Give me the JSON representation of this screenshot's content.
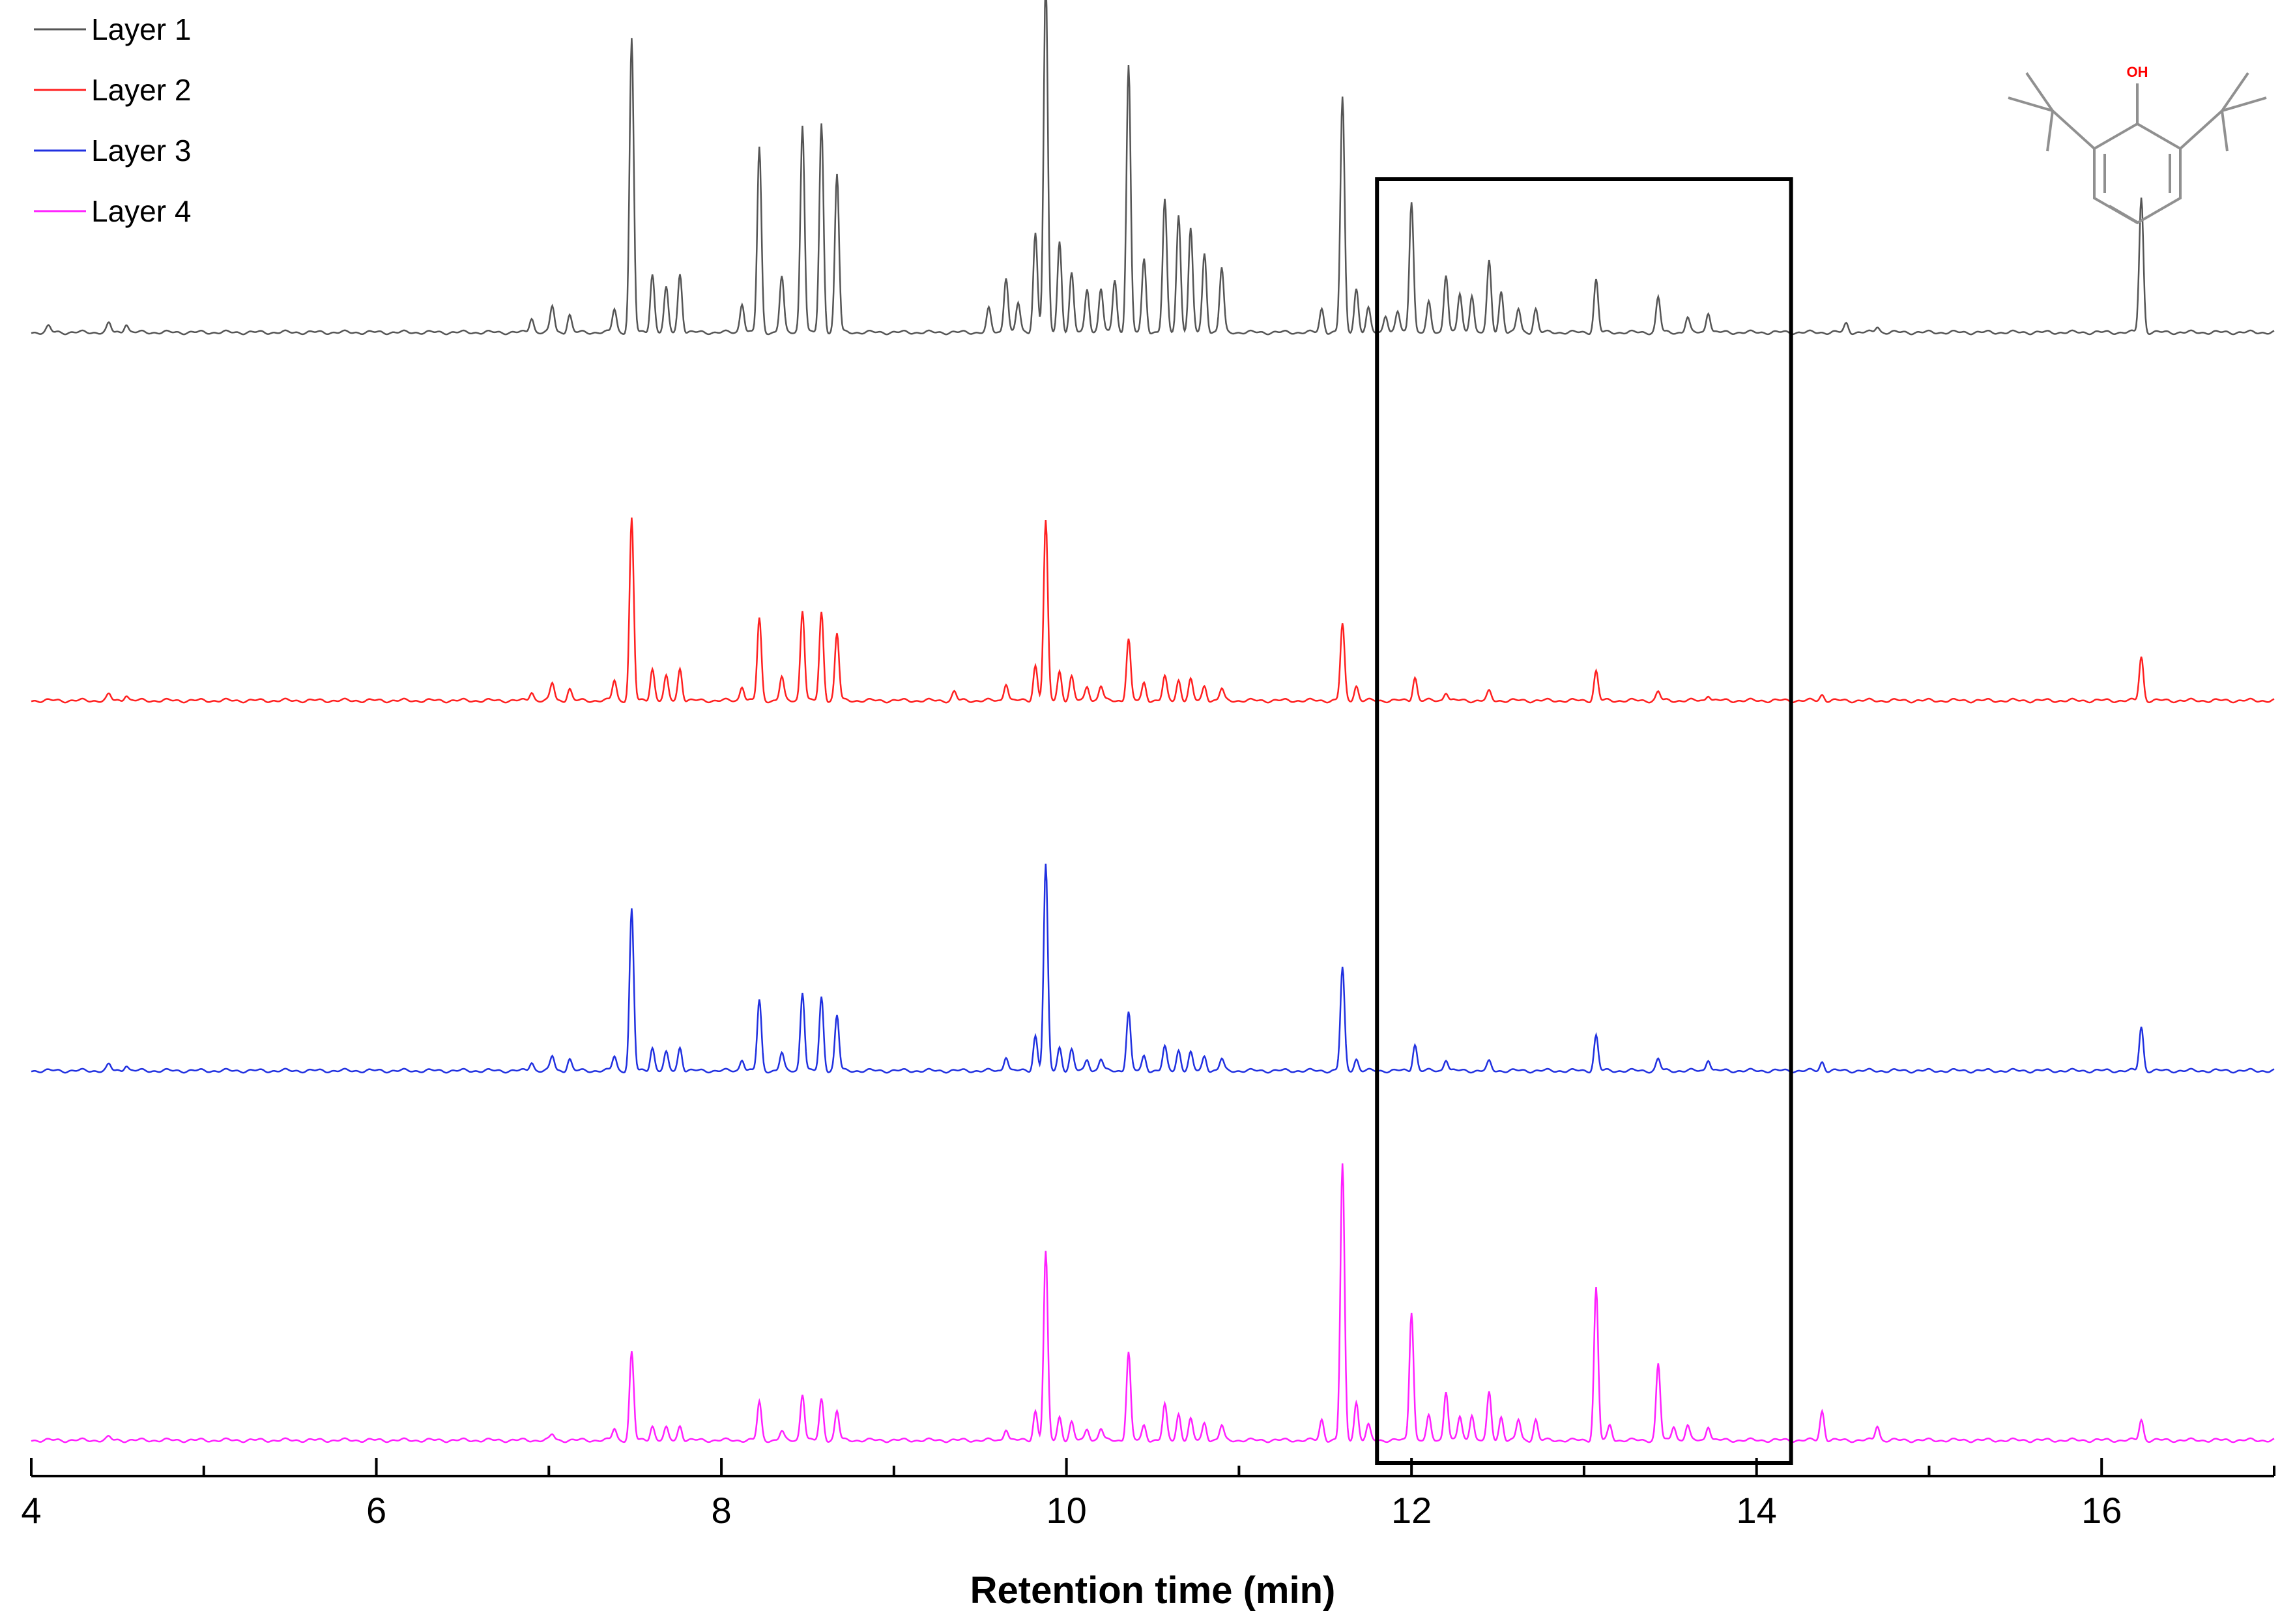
{
  "chart_data": {
    "type": "line",
    "xlabel": "Retention time (min)",
    "ylabel": "",
    "xlim": [
      4,
      17
    ],
    "xticks": [
      4,
      6,
      8,
      10,
      12,
      14,
      16
    ],
    "grid": false,
    "legend_position": "top-left",
    "highlight_region": [
      11.8,
      14.2
    ],
    "inset": "2,6-di-tert-butylphenol structure",
    "inset_label": "OH",
    "colors": {
      "Layer 1": "#555555",
      "Layer 2": "#ff2020",
      "Layer 3": "#2030e0",
      "Layer 4": "#ff20ff",
      "oh": "#ff0000"
    },
    "series": [
      {
        "name": "Layer 1",
        "peaks": [
          [
            4.1,
            0.02
          ],
          [
            4.45,
            0.03
          ],
          [
            4.55,
            0.03
          ],
          [
            6.9,
            0.05
          ],
          [
            7.02,
            0.09
          ],
          [
            7.12,
            0.06
          ],
          [
            7.38,
            0.08
          ],
          [
            7.48,
            1.0
          ],
          [
            7.6,
            0.2
          ],
          [
            7.68,
            0.15
          ],
          [
            7.76,
            0.2
          ],
          [
            8.12,
            0.1
          ],
          [
            8.22,
            0.63
          ],
          [
            8.35,
            0.19
          ],
          [
            8.47,
            0.71
          ],
          [
            8.58,
            0.71
          ],
          [
            8.67,
            0.54
          ],
          [
            9.55,
            0.08
          ],
          [
            9.65,
            0.19
          ],
          [
            9.72,
            0.1
          ],
          [
            9.82,
            0.34
          ],
          [
            9.88,
            1.2
          ],
          [
            9.96,
            0.31
          ],
          [
            10.03,
            0.2
          ],
          [
            10.12,
            0.15
          ],
          [
            10.2,
            0.15
          ],
          [
            10.28,
            0.18
          ],
          [
            10.36,
            0.91
          ],
          [
            10.45,
            0.25
          ],
          [
            10.57,
            0.45
          ],
          [
            10.65,
            0.4
          ],
          [
            10.72,
            0.35
          ],
          [
            10.8,
            0.27
          ],
          [
            10.9,
            0.22
          ],
          [
            11.48,
            0.08
          ],
          [
            11.6,
            0.8
          ],
          [
            11.68,
            0.15
          ],
          [
            11.75,
            0.08
          ],
          [
            11.85,
            0.06
          ],
          [
            11.92,
            0.07
          ],
          [
            12.0,
            0.45
          ],
          [
            12.1,
            0.1
          ],
          [
            12.2,
            0.2
          ],
          [
            12.28,
            0.13
          ],
          [
            12.35,
            0.13
          ],
          [
            12.45,
            0.24
          ],
          [
            12.52,
            0.14
          ],
          [
            12.62,
            0.08
          ],
          [
            12.72,
            0.08
          ],
          [
            13.07,
            0.18
          ],
          [
            13.43,
            0.12
          ],
          [
            13.6,
            0.05
          ],
          [
            13.72,
            0.07
          ],
          [
            14.52,
            0.03
          ],
          [
            14.7,
            0.02
          ],
          [
            16.23,
            0.46
          ]
        ]
      },
      {
        "name": "Layer 2",
        "peaks": [
          [
            4.45,
            0.02
          ],
          [
            4.55,
            0.02
          ],
          [
            6.9,
            0.03
          ],
          [
            7.02,
            0.06
          ],
          [
            7.12,
            0.04
          ],
          [
            7.38,
            0.07
          ],
          [
            7.48,
            0.62
          ],
          [
            7.6,
            0.11
          ],
          [
            7.68,
            0.08
          ],
          [
            7.76,
            0.11
          ],
          [
            8.12,
            0.05
          ],
          [
            8.22,
            0.28
          ],
          [
            8.35,
            0.08
          ],
          [
            8.47,
            0.31
          ],
          [
            8.58,
            0.3
          ],
          [
            8.67,
            0.23
          ],
          [
            9.35,
            0.03
          ],
          [
            9.65,
            0.06
          ],
          [
            9.82,
            0.12
          ],
          [
            9.88,
            0.61
          ],
          [
            9.96,
            0.1
          ],
          [
            10.03,
            0.08
          ],
          [
            10.12,
            0.05
          ],
          [
            10.2,
            0.05
          ],
          [
            10.36,
            0.21
          ],
          [
            10.45,
            0.06
          ],
          [
            10.57,
            0.08
          ],
          [
            10.65,
            0.07
          ],
          [
            10.72,
            0.07
          ],
          [
            10.8,
            0.05
          ],
          [
            10.9,
            0.04
          ],
          [
            11.6,
            0.26
          ],
          [
            11.68,
            0.05
          ],
          [
            12.02,
            0.08
          ],
          [
            12.2,
            0.03
          ],
          [
            12.45,
            0.03
          ],
          [
            13.07,
            0.1
          ],
          [
            13.43,
            0.03
          ],
          [
            13.72,
            0.02
          ],
          [
            14.38,
            0.02
          ],
          [
            16.23,
            0.15
          ]
        ]
      },
      {
        "name": "Layer 3",
        "peaks": [
          [
            4.45,
            0.02
          ],
          [
            4.55,
            0.02
          ],
          [
            6.9,
            0.03
          ],
          [
            7.02,
            0.05
          ],
          [
            7.12,
            0.04
          ],
          [
            7.38,
            0.05
          ],
          [
            7.48,
            0.55
          ],
          [
            7.6,
            0.08
          ],
          [
            7.68,
            0.06
          ],
          [
            7.76,
            0.08
          ],
          [
            8.12,
            0.04
          ],
          [
            8.22,
            0.24
          ],
          [
            8.35,
            0.06
          ],
          [
            8.47,
            0.27
          ],
          [
            8.58,
            0.25
          ],
          [
            8.67,
            0.19
          ],
          [
            9.65,
            0.05
          ],
          [
            9.82,
            0.12
          ],
          [
            9.88,
            0.7
          ],
          [
            9.96,
            0.08
          ],
          [
            10.03,
            0.07
          ],
          [
            10.12,
            0.04
          ],
          [
            10.2,
            0.04
          ],
          [
            10.36,
            0.2
          ],
          [
            10.45,
            0.05
          ],
          [
            10.57,
            0.08
          ],
          [
            10.65,
            0.07
          ],
          [
            10.72,
            0.06
          ],
          [
            10.8,
            0.05
          ],
          [
            10.9,
            0.04
          ],
          [
            11.6,
            0.35
          ],
          [
            11.68,
            0.04
          ],
          [
            12.02,
            0.09
          ],
          [
            12.2,
            0.04
          ],
          [
            12.45,
            0.03
          ],
          [
            13.07,
            0.12
          ],
          [
            13.43,
            0.04
          ],
          [
            13.72,
            0.04
          ],
          [
            14.38,
            0.03
          ],
          [
            16.23,
            0.15
          ]
        ]
      },
      {
        "name": "Layer 4",
        "peaks": [
          [
            4.45,
            0.01
          ],
          [
            7.02,
            0.02
          ],
          [
            7.38,
            0.04
          ],
          [
            7.48,
            0.3
          ],
          [
            7.6,
            0.05
          ],
          [
            7.68,
            0.04
          ],
          [
            7.76,
            0.05
          ],
          [
            8.22,
            0.13
          ],
          [
            8.35,
            0.03
          ],
          [
            8.47,
            0.16
          ],
          [
            8.58,
            0.14
          ],
          [
            8.67,
            0.1
          ],
          [
            9.65,
            0.04
          ],
          [
            9.82,
            0.1
          ],
          [
            9.88,
            0.64
          ],
          [
            9.96,
            0.08
          ],
          [
            10.03,
            0.06
          ],
          [
            10.12,
            0.04
          ],
          [
            10.2,
            0.04
          ],
          [
            10.36,
            0.3
          ],
          [
            10.45,
            0.05
          ],
          [
            10.57,
            0.12
          ],
          [
            10.65,
            0.09
          ],
          [
            10.72,
            0.07
          ],
          [
            10.8,
            0.06
          ],
          [
            10.9,
            0.05
          ],
          [
            11.48,
            0.07
          ],
          [
            11.6,
            0.94
          ],
          [
            11.68,
            0.13
          ],
          [
            11.75,
            0.05
          ],
          [
            12.0,
            0.44
          ],
          [
            12.1,
            0.08
          ],
          [
            12.2,
            0.17
          ],
          [
            12.28,
            0.08
          ],
          [
            12.35,
            0.09
          ],
          [
            12.45,
            0.16
          ],
          [
            12.52,
            0.08
          ],
          [
            12.62,
            0.07
          ],
          [
            12.72,
            0.07
          ],
          [
            13.07,
            0.52
          ],
          [
            13.15,
            0.05
          ],
          [
            13.43,
            0.26
          ],
          [
            13.52,
            0.05
          ],
          [
            13.6,
            0.05
          ],
          [
            13.72,
            0.05
          ],
          [
            14.38,
            0.1
          ],
          [
            14.7,
            0.05
          ],
          [
            16.23,
            0.07
          ]
        ]
      }
    ]
  }
}
